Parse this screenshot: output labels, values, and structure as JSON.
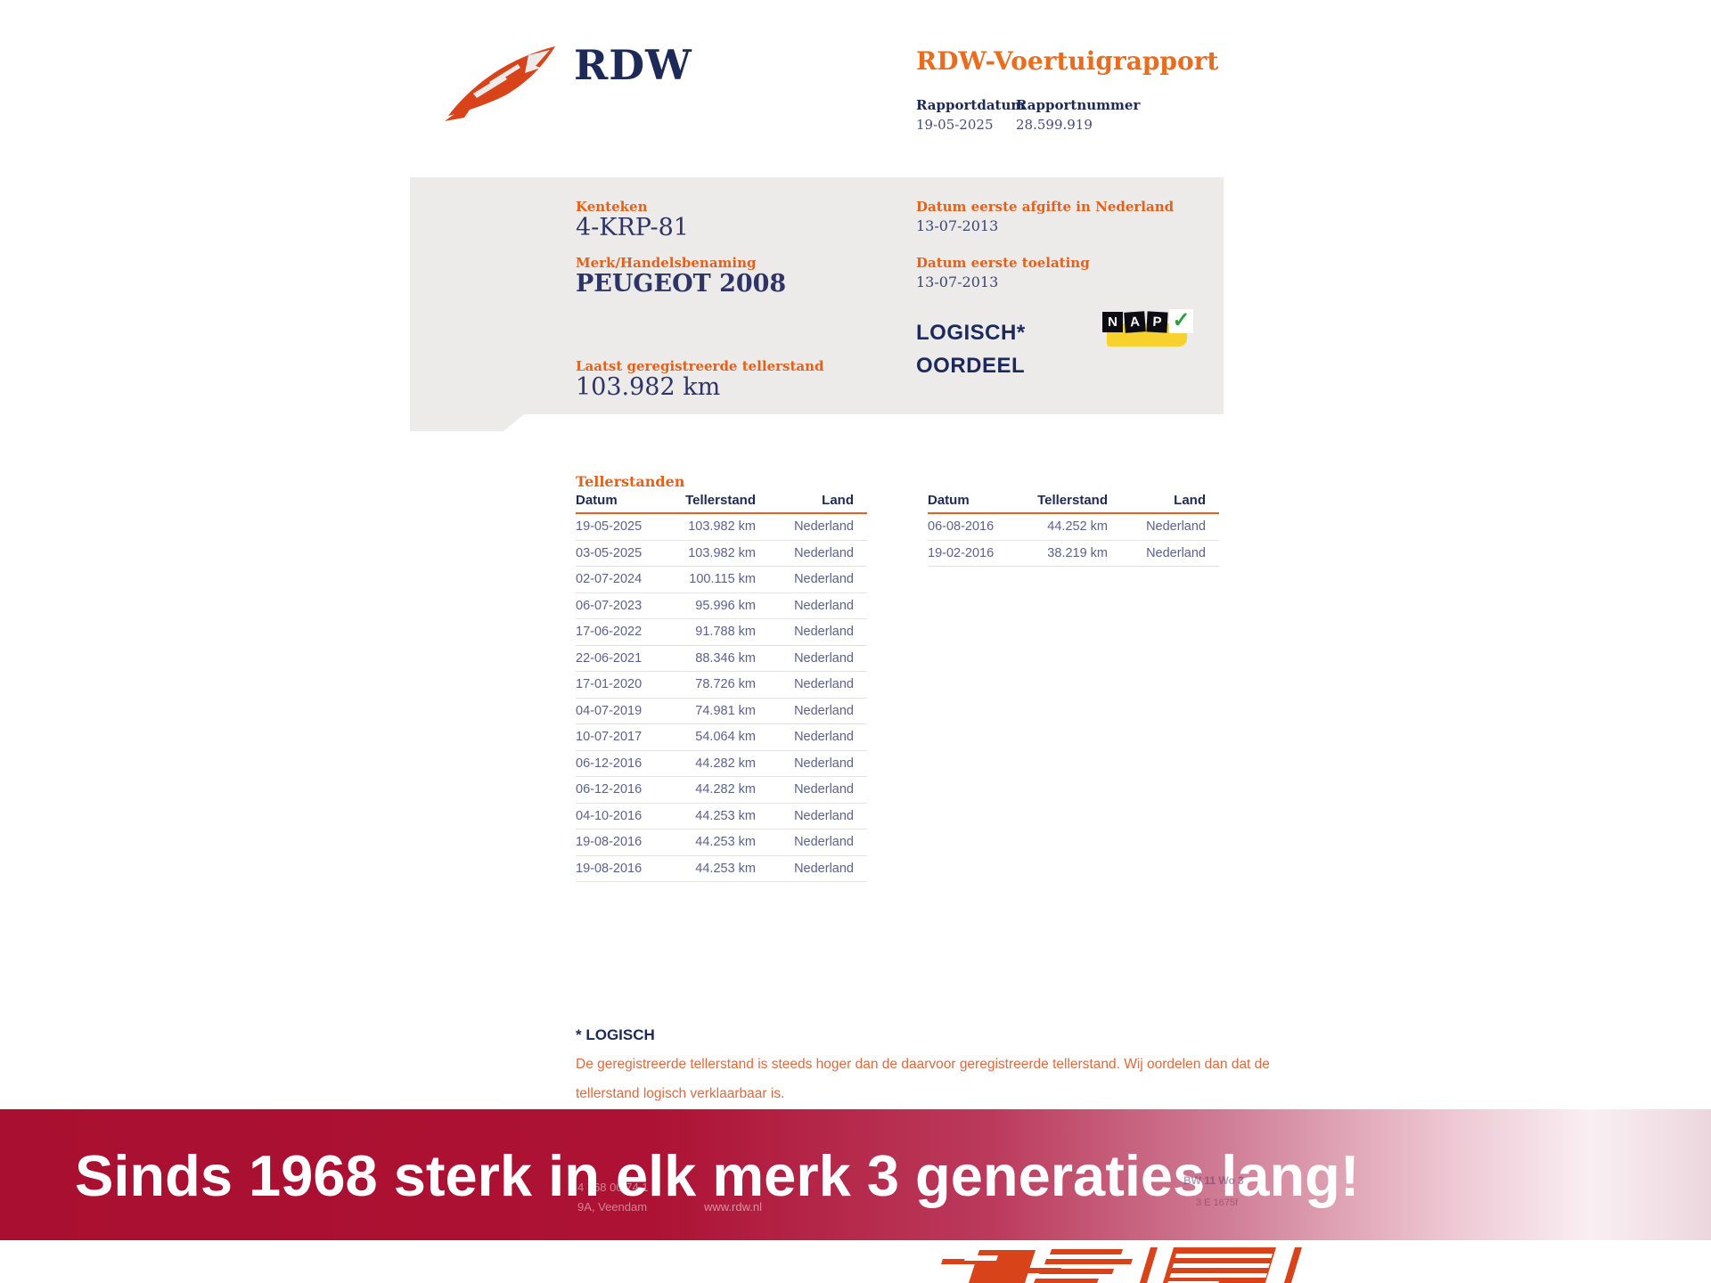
{
  "header": {
    "brand": "RDW",
    "title": "RDW-Voertuigrapport",
    "meta": [
      {
        "label": "Rapportdatum",
        "value": "19-05-2025"
      },
      {
        "label": "Rapportnummer",
        "value": "28.599.919"
      }
    ]
  },
  "summary": {
    "fields_left": [
      {
        "label": "Kenteken",
        "value": "4-KRP-81"
      },
      {
        "label": "Merk/Handelsbenaming",
        "value": "PEUGEOT 2008"
      },
      {
        "label": "Laatst geregistreerde tellerstand",
        "value": "103.982 km"
      }
    ],
    "fields_right": [
      {
        "label": "Datum eerste afgifte in Nederland",
        "value": "13-07-2013"
      },
      {
        "label": "Datum eerste toelating",
        "value": "13-07-2013"
      }
    ],
    "verdict_line1": "LOGISCH*",
    "verdict_line2": "OORDEEL",
    "nap": {
      "letters": [
        "N",
        "A",
        "P"
      ],
      "check": "✓"
    }
  },
  "tellerstanden": {
    "section_title": "Tellerstanden",
    "columns": [
      "Datum",
      "Tellerstand",
      "Land"
    ],
    "left_rows": [
      [
        "19-05-2025",
        "103.982 km",
        "Nederland"
      ],
      [
        "03-05-2025",
        "103.982 km",
        "Nederland"
      ],
      [
        "02-07-2024",
        "100.115 km",
        "Nederland"
      ],
      [
        "06-07-2023",
        "95.996 km",
        "Nederland"
      ],
      [
        "17-06-2022",
        "91.788 km",
        "Nederland"
      ],
      [
        "22-06-2021",
        "88.346 km",
        "Nederland"
      ],
      [
        "17-01-2020",
        "78.726 km",
        "Nederland"
      ],
      [
        "04-07-2019",
        "74.981 km",
        "Nederland"
      ],
      [
        "10-07-2017",
        "54.064 km",
        "Nederland"
      ],
      [
        "06-12-2016",
        "44.282 km",
        "Nederland"
      ],
      [
        "06-12-2016",
        "44.282 km",
        "Nederland"
      ],
      [
        "04-10-2016",
        "44.253 km",
        "Nederland"
      ],
      [
        "19-08-2016",
        "44.253 km",
        "Nederland"
      ],
      [
        "19-08-2016",
        "44.253 km",
        "Nederland"
      ]
    ],
    "right_rows": [
      [
        "06-08-2016",
        "44.252 km",
        "Nederland"
      ],
      [
        "19-02-2016",
        "38.219 km",
        "Nederland"
      ]
    ]
  },
  "footnote": {
    "title": "* LOGISCH",
    "body": "De geregistreerde tellerstand is steeds hoger dan de daarvoor geregistreerde tellerstand. Wij oordelen dan dat de tellerstand logisch verklaarbaar is."
  },
  "banner": {
    "text": "Sinds 1968 sterk in elk merk 3 generaties lang!"
  },
  "ghost_fragments": {
    "phone": "4 768 00 74 1",
    "address": "9A, Veendam",
    "site": "www.rdw.nl",
    "stamp1": "BW 11 Wo 3",
    "stamp2": "3 E 1675f"
  },
  "colors": {
    "accent_orange": "#e4611b",
    "brand_navy": "#1d2a57",
    "banner_red": "#a90f30",
    "nap_yellow": "#f7d22e",
    "nap_green": "#28a03c",
    "logo_orange": "#d8431a"
  }
}
